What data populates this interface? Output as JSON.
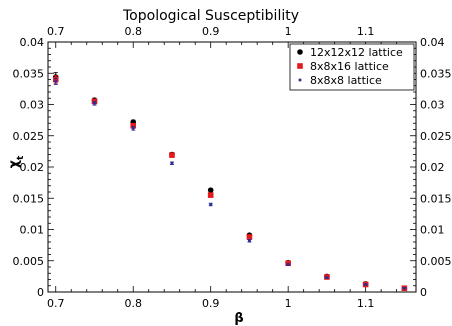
{
  "chart_data": {
    "type": "scatter",
    "title": "Topological Susceptibility",
    "xlabel": "β",
    "ylabel": "χ_t",
    "xlim": [
      0.69,
      1.165
    ],
    "ylim": [
      0,
      0.04
    ],
    "grid": false,
    "legend_position": "top-right",
    "x_ticks": [
      0.7,
      0.8,
      0.9,
      1.0,
      1.1
    ],
    "x_tick_labels": [
      "0.7",
      "0.8",
      "0.9",
      "1",
      "1.1"
    ],
    "y_ticks": [
      0,
      0.005,
      0.01,
      0.015,
      0.02,
      0.025,
      0.03,
      0.035,
      0.04
    ],
    "y_tick_labels": [
      "0",
      "0.005",
      "0.01",
      "0.015",
      "0.02",
      "0.025",
      "0.03",
      "0.035",
      "0.04"
    ],
    "series": [
      {
        "name": "12x12x12 lattice",
        "marker": "circle",
        "color": "#000000",
        "points": [
          {
            "x": 0.7,
            "y": 0.0344,
            "err": 0.0007
          },
          {
            "x": 0.75,
            "y": 0.0307,
            "err": 0.0003
          },
          {
            "x": 0.8,
            "y": 0.0272,
            "err": 0.0003
          },
          {
            "x": 0.85,
            "y": 0.022,
            "err": 0.0003
          },
          {
            "x": 0.9,
            "y": 0.0163,
            "err": 0.0002
          },
          {
            "x": 0.95,
            "y": 0.0091,
            "err": 0.0002
          },
          {
            "x": 1.0,
            "y": 0.0047,
            "err": 0.0002
          },
          {
            "x": 1.05,
            "y": 0.0025,
            "err": 0.0001
          },
          {
            "x": 1.1,
            "y": 0.0013,
            "err": 0.0001
          },
          {
            "x": 1.15,
            "y": 0.0006,
            "err": 0.0001
          }
        ]
      },
      {
        "name": "8x8x16 lattice",
        "marker": "square",
        "color": "#e41a1c",
        "points": [
          {
            "x": 0.7,
            "y": 0.034,
            "err": 0.0006
          },
          {
            "x": 0.75,
            "y": 0.0305,
            "err": 0.0003
          },
          {
            "x": 0.8,
            "y": 0.0266,
            "err": 0.0003
          },
          {
            "x": 0.85,
            "y": 0.0219,
            "err": 0.0003
          },
          {
            "x": 0.9,
            "y": 0.0155,
            "err": 0.0002
          },
          {
            "x": 0.95,
            "y": 0.0088,
            "err": 0.0002
          },
          {
            "x": 1.0,
            "y": 0.0046,
            "err": 0.0002
          },
          {
            "x": 1.05,
            "y": 0.0024,
            "err": 0.0001
          },
          {
            "x": 1.1,
            "y": 0.0012,
            "err": 0.0001
          },
          {
            "x": 1.15,
            "y": 0.0006,
            "err": 0.0001
          }
        ]
      },
      {
        "name": "8x8x8 lattice",
        "marker": "dot",
        "color": "#2c2c9a",
        "points": [
          {
            "x": 0.7,
            "y": 0.0337,
            "err": 0.0005
          },
          {
            "x": 0.75,
            "y": 0.0302,
            "err": 0.0003
          },
          {
            "x": 0.8,
            "y": 0.0262,
            "err": 0.0003
          },
          {
            "x": 0.85,
            "y": 0.0206,
            "err": 0.0002
          },
          {
            "x": 0.9,
            "y": 0.014,
            "err": 0.0002
          },
          {
            "x": 0.95,
            "y": 0.0082,
            "err": 0.0002
          },
          {
            "x": 1.0,
            "y": 0.0044,
            "err": 0.0001
          },
          {
            "x": 1.05,
            "y": 0.0023,
            "err": 0.0001
          },
          {
            "x": 1.1,
            "y": 0.0012,
            "err": 0.0001
          },
          {
            "x": 1.15,
            "y": 0.0006,
            "err": 0.0001
          }
        ]
      }
    ]
  }
}
